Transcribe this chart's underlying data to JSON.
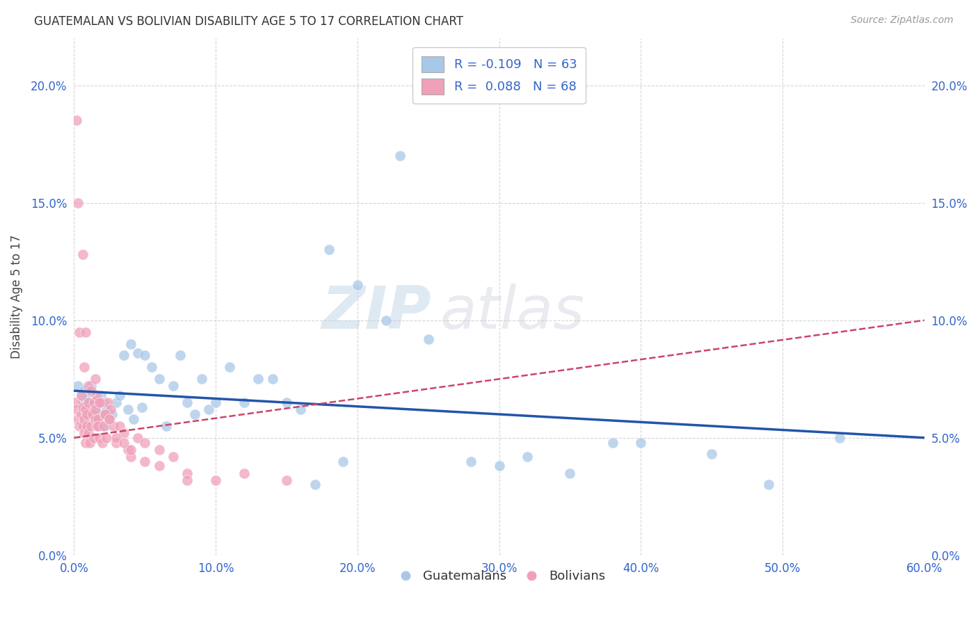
{
  "title": "GUATEMALAN VS BOLIVIAN DISABILITY AGE 5 TO 17 CORRELATION CHART",
  "source": "Source: ZipAtlas.com",
  "ylabel": "Disability Age 5 to 17",
  "xlabel_ticks": [
    "0.0%",
    "10.0%",
    "20.0%",
    "30.0%",
    "40.0%",
    "50.0%",
    "60.0%"
  ],
  "ylabel_ticks": [
    "0.0%",
    "5.0%",
    "10.0%",
    "15.0%",
    "20.0%"
  ],
  "xlim": [
    0.0,
    0.6
  ],
  "ylim": [
    0.0,
    0.22
  ],
  "legend_r_blue": "-0.109",
  "legend_n_blue": "63",
  "legend_r_pink": "0.088",
  "legend_n_pink": "68",
  "blue_color": "#a8c8e8",
  "pink_color": "#f0a0b8",
  "trend_blue_color": "#2255aa",
  "trend_pink_color": "#cc4466",
  "watermark_zip": "ZIP",
  "watermark_atlas": "atlas",
  "guatemalan_x": [
    0.003,
    0.005,
    0.006,
    0.007,
    0.008,
    0.009,
    0.01,
    0.011,
    0.012,
    0.013,
    0.014,
    0.015,
    0.016,
    0.017,
    0.018,
    0.019,
    0.02,
    0.021,
    0.022,
    0.023,
    0.025,
    0.027,
    0.03,
    0.032,
    0.035,
    0.038,
    0.04,
    0.042,
    0.045,
    0.048,
    0.05,
    0.055,
    0.06,
    0.065,
    0.07,
    0.075,
    0.08,
    0.085,
    0.09,
    0.095,
    0.1,
    0.11,
    0.12,
    0.13,
    0.14,
    0.15,
    0.16,
    0.18,
    0.2,
    0.22,
    0.25,
    0.28,
    0.3,
    0.32,
    0.35,
    0.38,
    0.4,
    0.45,
    0.49,
    0.54,
    0.17,
    0.19,
    0.23
  ],
  "guatemalan_y": [
    0.072,
    0.068,
    0.065,
    0.07,
    0.063,
    0.067,
    0.058,
    0.065,
    0.072,
    0.06,
    0.065,
    0.062,
    0.058,
    0.066,
    0.055,
    0.068,
    0.06,
    0.065,
    0.055,
    0.062,
    0.058,
    0.06,
    0.065,
    0.068,
    0.085,
    0.062,
    0.09,
    0.058,
    0.086,
    0.063,
    0.085,
    0.08,
    0.075,
    0.055,
    0.072,
    0.085,
    0.065,
    0.06,
    0.075,
    0.062,
    0.065,
    0.08,
    0.065,
    0.075,
    0.075,
    0.065,
    0.062,
    0.13,
    0.115,
    0.1,
    0.092,
    0.04,
    0.038,
    0.042,
    0.035,
    0.048,
    0.048,
    0.043,
    0.03,
    0.05,
    0.03,
    0.04,
    0.17
  ],
  "bolivian_x": [
    0.001,
    0.002,
    0.003,
    0.004,
    0.005,
    0.005,
    0.006,
    0.006,
    0.007,
    0.007,
    0.008,
    0.008,
    0.009,
    0.009,
    0.01,
    0.01,
    0.011,
    0.012,
    0.013,
    0.014,
    0.014,
    0.015,
    0.015,
    0.016,
    0.016,
    0.017,
    0.017,
    0.018,
    0.019,
    0.02,
    0.021,
    0.022,
    0.023,
    0.024,
    0.025,
    0.026,
    0.028,
    0.03,
    0.032,
    0.035,
    0.038,
    0.04,
    0.045,
    0.05,
    0.06,
    0.07,
    0.08,
    0.1,
    0.12,
    0.15,
    0.002,
    0.003,
    0.004,
    0.006,
    0.007,
    0.008,
    0.01,
    0.012,
    0.015,
    0.018,
    0.022,
    0.025,
    0.03,
    0.035,
    0.04,
    0.05,
    0.06,
    0.08
  ],
  "bolivian_y": [
    0.065,
    0.062,
    0.058,
    0.055,
    0.068,
    0.06,
    0.063,
    0.055,
    0.052,
    0.058,
    0.048,
    0.062,
    0.055,
    0.06,
    0.052,
    0.065,
    0.048,
    0.055,
    0.06,
    0.05,
    0.065,
    0.058,
    0.062,
    0.055,
    0.068,
    0.058,
    0.055,
    0.05,
    0.065,
    0.048,
    0.055,
    0.06,
    0.05,
    0.065,
    0.058,
    0.062,
    0.055,
    0.048,
    0.055,
    0.052,
    0.045,
    0.042,
    0.05,
    0.048,
    0.045,
    0.042,
    0.035,
    0.032,
    0.035,
    0.032,
    0.185,
    0.15,
    0.095,
    0.128,
    0.08,
    0.095,
    0.072,
    0.07,
    0.075,
    0.065,
    0.06,
    0.058,
    0.05,
    0.048,
    0.045,
    0.04,
    0.038,
    0.032
  ]
}
